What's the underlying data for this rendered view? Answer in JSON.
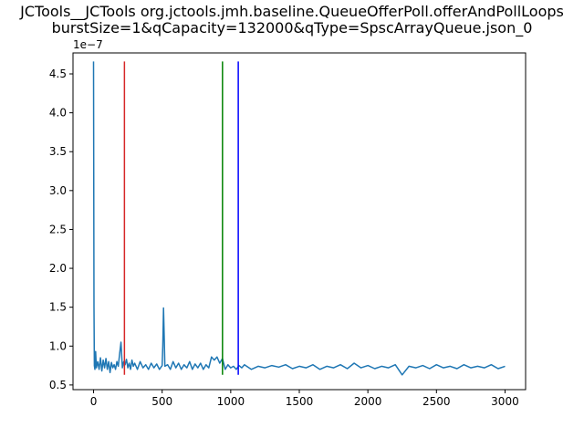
{
  "chart_data": {
    "type": "line",
    "title_lines": [
      "JCTools__JCTools org.jctools.jmh.baseline.QueueOfferPoll.offerAndPollLoops",
      "burstSize=1&qCapacity=132000&qType=SpscArrayQueue.json_0"
    ],
    "xlabel": "",
    "ylabel": "",
    "y_offset_label": "1e−7",
    "xlim": [
      -150,
      3150
    ],
    "ylim": [
      4.4e-08,
      4.77e-07
    ],
    "x_ticks": [
      0,
      500,
      1000,
      1500,
      2000,
      2500,
      3000
    ],
    "x_tick_labels": [
      "0",
      "500",
      "1000",
      "1500",
      "2000",
      "2500",
      "3000"
    ],
    "y_ticks": [
      5e-08,
      1e-07,
      1.5e-07,
      2e-07,
      2.5e-07,
      3e-07,
      3.5e-07,
      4e-07,
      4.5e-07
    ],
    "y_tick_labels": [
      "0.5",
      "1.0",
      "1.5",
      "2.0",
      "2.5",
      "3.0",
      "3.5",
      "4.0",
      "4.5"
    ],
    "grid": false,
    "legend": "none",
    "series": [
      {
        "color": "#1f77b4",
        "x": [
          0,
          3,
          6,
          10,
          15,
          20,
          30,
          40,
          50,
          60,
          70,
          80,
          90,
          100,
          110,
          120,
          130,
          140,
          150,
          160,
          170,
          180,
          190,
          200,
          210,
          220,
          230,
          240,
          250,
          260,
          270,
          280,
          290,
          300,
          320,
          340,
          360,
          380,
          400,
          420,
          440,
          460,
          480,
          500,
          505,
          510,
          515,
          520,
          540,
          560,
          580,
          600,
          620,
          640,
          660,
          680,
          700,
          720,
          740,
          760,
          780,
          800,
          820,
          840,
          860,
          880,
          900,
          920,
          940,
          960,
          980,
          1000,
          1020,
          1040,
          1060,
          1080,
          1100,
          1150,
          1200,
          1250,
          1300,
          1350,
          1400,
          1450,
          1500,
          1550,
          1600,
          1650,
          1700,
          1750,
          1800,
          1850,
          1900,
          1950,
          2000,
          2050,
          2100,
          2150,
          2200,
          2250,
          2300,
          2350,
          2400,
          2450,
          2500,
          2550,
          2600,
          2650,
          2700,
          2750,
          2800,
          2850,
          2900,
          2950,
          3000
        ],
        "y": [
          4.66e-07,
          1.5e-07,
          7.5e-08,
          7e-08,
          9.3e-08,
          7.2e-08,
          8e-08,
          7e-08,
          8.5e-08,
          6.8e-08,
          8.2e-08,
          7.2e-08,
          8.4e-08,
          7e-08,
          8e-08,
          6.6e-08,
          7.9e-08,
          7.2e-08,
          7.6e-08,
          7e-08,
          8e-08,
          7.4e-08,
          9e-08,
          1.05e-07,
          7.2e-08,
          8e-08,
          7.6e-08,
          8.3e-08,
          7.2e-08,
          7.8e-08,
          7e-08,
          8.2e-08,
          7.4e-08,
          7.8e-08,
          7e-08,
          8e-08,
          7.2e-08,
          7.6e-08,
          7e-08,
          7.8e-08,
          7.2e-08,
          7.7e-08,
          7e-08,
          7.5e-08,
          1e-07,
          1.49e-07,
          1.1e-07,
          7.4e-08,
          7.6e-08,
          7e-08,
          8e-08,
          7.2e-08,
          7.8e-08,
          7e-08,
          7.6e-08,
          7.2e-08,
          8e-08,
          7e-08,
          7.7e-08,
          7.2e-08,
          7.8e-08,
          7e-08,
          7.6e-08,
          7.2e-08,
          8.6e-08,
          8.2e-08,
          8.6e-08,
          7.8e-08,
          8.4e-08,
          7e-08,
          7.6e-08,
          7.2e-08,
          7.4e-08,
          7e-08,
          7.5e-08,
          7.2e-08,
          7.6e-08,
          7e-08,
          7.4e-08,
          7.2e-08,
          7.5e-08,
          7.3e-08,
          7.6e-08,
          7.1e-08,
          7.4e-08,
          7.2e-08,
          7.6e-08,
          7e-08,
          7.4e-08,
          7.2e-08,
          7.6e-08,
          7.1e-08,
          7.8e-08,
          7.2e-08,
          7.5e-08,
          7.1e-08,
          7.4e-08,
          7.2e-08,
          7.6e-08,
          6.3e-08,
          7.4e-08,
          7.2e-08,
          7.5e-08,
          7.1e-08,
          7.6e-08,
          7.2e-08,
          7.4e-08,
          7.1e-08,
          7.6e-08,
          7.2e-08,
          7.4e-08,
          7.2e-08,
          7.6e-08,
          7.1e-08,
          7.4e-08
        ]
      }
    ],
    "vertical_lines": [
      {
        "x": 225,
        "color": "#d62728",
        "ymin": 6.3e-08,
        "ymax": 4.66e-07
      },
      {
        "x": 940,
        "color": "#008000",
        "ymin": 6.3e-08,
        "ymax": 4.66e-07
      },
      {
        "x": 1055,
        "color": "#0000ff",
        "ymin": 6.3e-08,
        "ymax": 4.66e-07
      }
    ]
  }
}
